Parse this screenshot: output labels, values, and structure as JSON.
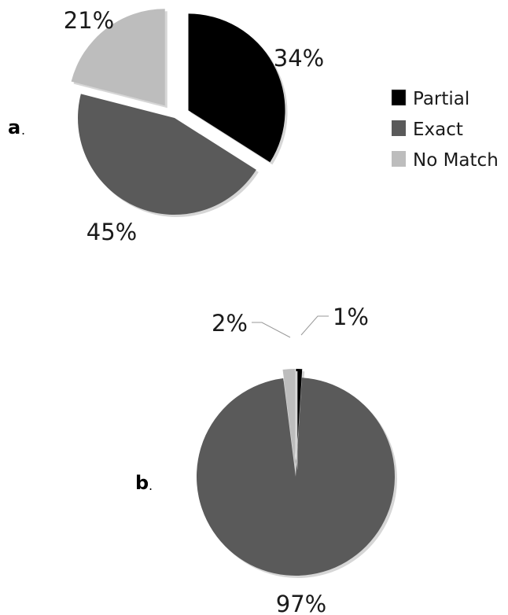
{
  "chart_data": [
    {
      "type": "pie",
      "panel_label": "a",
      "panel_suffix": ".",
      "categories": [
        "Partial",
        "Exact",
        "No Match"
      ],
      "values": [
        34,
        45,
        21
      ],
      "data_labels": [
        "34%",
        "45%",
        "21%"
      ],
      "colors": [
        "#000000",
        "#5a5a5a",
        "#bdbdbd"
      ],
      "exploded": true
    },
    {
      "type": "pie",
      "panel_label": "b",
      "panel_suffix": ".",
      "categories": [
        "Partial",
        "Exact",
        "No Match"
      ],
      "values": [
        1,
        97,
        2
      ],
      "data_labels": [
        "1%",
        "97%",
        "2%"
      ],
      "colors": [
        "#000000",
        "#5a5a5a",
        "#bdbdbd"
      ],
      "exploded": true
    }
  ],
  "legend": {
    "placement": "right",
    "entries": [
      {
        "label": "Partial",
        "color": "#000000"
      },
      {
        "label": "Exact",
        "color": "#5a5a5a"
      },
      {
        "label": "No Match",
        "color": "#bdbdbd"
      }
    ]
  }
}
